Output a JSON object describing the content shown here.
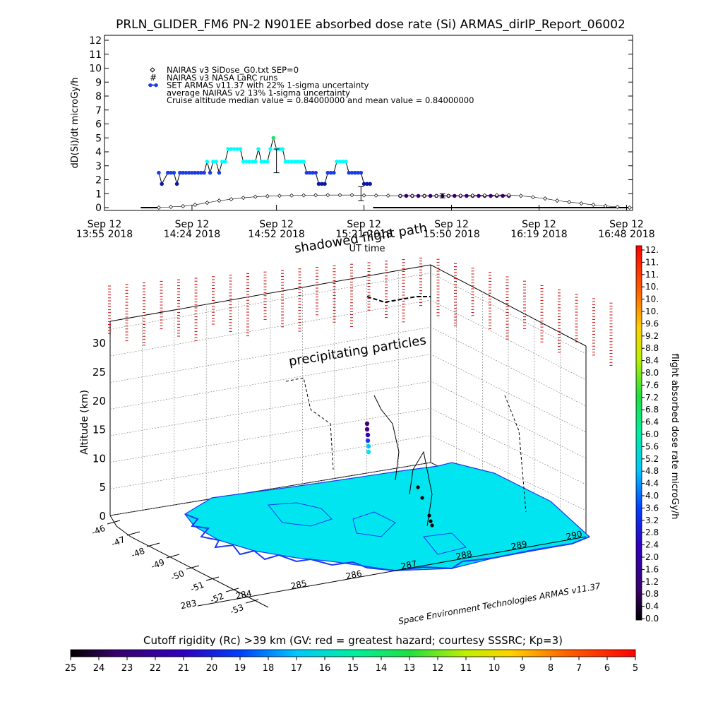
{
  "title": "PRLN_GLIDER_FM6 PN-2 N901EE absorbed dose rate (Si) ARMAS_dirIP_Report_06002",
  "colors": {
    "cyan": "#00ffff",
    "blue": "#1a3cf0",
    "green": "#20e070",
    "purple": "#400080",
    "red": "#d00000",
    "land": "#00e5f0",
    "coast": "#1a3cf0"
  },
  "chart_data": [
    {
      "type": "line",
      "ylabel": "dD(Si)/dt microGy/h",
      "xlabel": "UT time",
      "ylim": [
        0,
        12
      ],
      "yticks": [
        "0",
        "1",
        "2",
        "3",
        "4",
        "5",
        "6",
        "7",
        "8",
        "9",
        "10",
        "11",
        "12"
      ],
      "xticks": [
        {
          "l1": "Sep 12",
          "l2": "13:55 2018",
          "t": 0
        },
        {
          "l1": "Sep 12",
          "l2": "14:24 2018",
          "t": 29
        },
        {
          "l1": "Sep 12",
          "l2": "14:52 2018",
          "t": 57
        },
        {
          "l1": "Sep 12",
          "l2": "15:21 2018",
          "t": 86
        },
        {
          "l1": "Sep 12",
          "l2": "15:50 2018",
          "t": 115
        },
        {
          "l1": "Sep 12",
          "l2": "16:19 2018",
          "t": 144
        },
        {
          "l1": "Sep 12",
          "l2": "16:48 2018",
          "t": 173
        }
      ],
      "legend": [
        {
          "symbol": "diamond",
          "text": "NAIRAS v3 SiDose_G0.txt SEP=0"
        },
        {
          "symbol": "hash",
          "text": "NAIRAS v3 NASA LaRC runs"
        },
        {
          "symbol": "dot",
          "text": "SET ARMAS v11.37 with 22% 1-sigma uncertainty"
        },
        {
          "symbol": "none",
          "text": "average NAIRAS v2 13% 1-sigma uncertainty"
        },
        {
          "symbol": "none",
          "text": "Cruise altitude median value = 0.84000000 and mean value = 0.84000000"
        }
      ],
      "series": [
        {
          "symbol": "dot",
          "minutes": [
            18,
            19,
            21,
            22,
            23,
            24,
            25,
            26,
            27,
            28,
            29,
            30,
            31,
            32,
            33,
            34,
            35,
            36,
            37,
            38,
            39,
            40,
            41,
            42,
            43,
            44,
            45,
            46,
            47,
            48,
            49,
            50,
            51,
            52,
            53,
            54,
            55,
            56,
            57,
            58,
            59,
            60,
            61,
            62,
            63,
            64,
            65,
            66,
            67,
            68,
            69,
            70,
            71,
            72,
            73,
            74,
            75,
            76,
            77,
            78,
            79,
            80,
            81,
            82,
            83,
            84,
            85,
            86,
            87,
            88
          ],
          "values": [
            2.5,
            1.7,
            2.5,
            2.5,
            2.5,
            1.7,
            2.5,
            2.5,
            2.5,
            2.5,
            2.5,
            2.5,
            2.5,
            2.5,
            2.5,
            3.3,
            2.5,
            3.3,
            3.3,
            2.5,
            3.3,
            3.3,
            4.2,
            4.2,
            4.2,
            4.2,
            4.2,
            3.3,
            3.3,
            3.3,
            3.3,
            3.3,
            4.2,
            3.3,
            3.3,
            3.3,
            4.2,
            5.0,
            4.2,
            4.2,
            4.2,
            3.3,
            3.3,
            3.3,
            3.3,
            3.3,
            3.3,
            3.3,
            2.5,
            2.5,
            2.5,
            2.5,
            1.7,
            1.7,
            1.7,
            2.5,
            2.5,
            2.5,
            3.3,
            3.3,
            3.3,
            3.3,
            2.5,
            2.5,
            2.5,
            2.5,
            2.5,
            1.7,
            1.7,
            1.7
          ]
        },
        {
          "symbol": "dot",
          "minutes": [
            98,
            100,
            102,
            104,
            106,
            108,
            110,
            112,
            114,
            116,
            118,
            120,
            122,
            124,
            126,
            128,
            130,
            132,
            134
          ],
          "values": [
            0.84,
            0.84,
            0.84,
            0.84,
            0.84,
            0.84,
            0.84,
            0.84,
            0.84,
            0.84,
            0.84,
            0.84,
            0.84,
            0.84,
            0.84,
            0.84,
            0.84,
            0.84,
            0.84
          ]
        },
        {
          "symbol": "diamond",
          "minutes": [
            18,
            22,
            26,
            30,
            34,
            38,
            42,
            46,
            50,
            54,
            58,
            62,
            66,
            70,
            74,
            78,
            82,
            86,
            90,
            94,
            98,
            102,
            106,
            110,
            114,
            118,
            122,
            126,
            130,
            134,
            138,
            142,
            146,
            150,
            154,
            158,
            162,
            166,
            170,
            174
          ],
          "values": [
            0.0,
            0.05,
            0.1,
            0.2,
            0.35,
            0.5,
            0.6,
            0.7,
            0.78,
            0.82,
            0.85,
            0.87,
            0.88,
            0.89,
            0.9,
            0.9,
            0.9,
            0.88,
            0.87,
            0.86,
            0.85,
            0.85,
            0.84,
            0.84,
            0.85,
            0.86,
            0.87,
            0.88,
            0.9,
            0.9,
            0.85,
            0.75,
            0.65,
            0.5,
            0.4,
            0.3,
            0.2,
            0.12,
            0.05,
            0.0
          ]
        }
      ]
    },
    {
      "type": "scatter",
      "zlabel": "Altitude (km)",
      "zticks": [
        "0",
        "5",
        "10",
        "15",
        "20",
        "25",
        "30"
      ],
      "lat_ticks": [
        "-46",
        "-47",
        "-48",
        "-49",
        "-50",
        "-51",
        "-52",
        "-53"
      ],
      "lon_ticks": [
        "283",
        "284",
        "285",
        "286",
        "287",
        "288",
        "289",
        "290"
      ],
      "annotations": [
        "shadowed flight path",
        "precipitating particles"
      ],
      "credit": "Space Environment Technologies ARMAS v11.37"
    }
  ],
  "colorbar_right": {
    "label": "flight absorbed dose rate microGy/h",
    "ticks": [
      "12.",
      "11.",
      "11.",
      "10.",
      "10.",
      "10.",
      "9.6",
      "9.2",
      "8.8",
      "8.4",
      "8.0",
      "7.6",
      "7.2",
      "6.8",
      "6.4",
      "6.0",
      "5.6",
      "5.2",
      "4.8",
      "4.4",
      "4.0",
      "3.6",
      "3.2",
      "2.8",
      "2.4",
      "2.0",
      "1.6",
      "1.2",
      "0.8",
      "0.4",
      "0.0"
    ]
  },
  "colorbar_bottom": {
    "label": "Cutoff rigidity (Rc) >39 km (GV: red = greatest hazard; courtesy SSSRC; Kp=3)",
    "ticks": [
      "25",
      "24",
      "23",
      "22",
      "21",
      "20",
      "19",
      "18",
      "17",
      "16",
      "15",
      "14",
      "13",
      "12",
      "11",
      "10",
      "9",
      "8",
      "7",
      "6",
      "5"
    ]
  }
}
